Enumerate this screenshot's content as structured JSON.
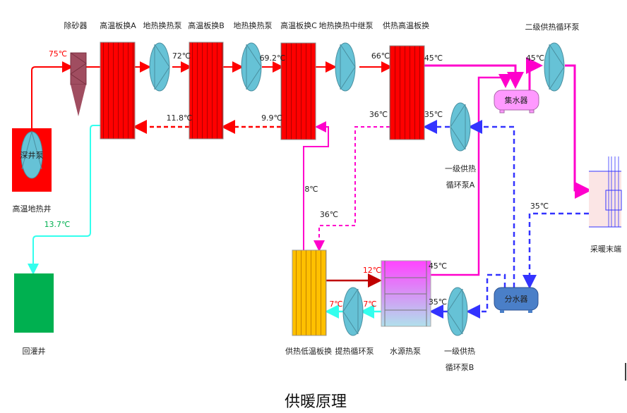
{
  "caption": "供暖原理",
  "components": {
    "deep_well_pump": "深井泵",
    "hot_well": "高温地热井",
    "reinjection_well": "回灌井",
    "desander": "除砂器",
    "hx_a": "高温板换A",
    "pump_1": "地热换热泵",
    "hx_b": "高温板换B",
    "pump_2": "地热换热泵",
    "hx_c": "高温板换C",
    "relay_pump": "地热换热中继泵",
    "supply_hx_high": "供热高温板换",
    "collector": "集水器",
    "secondary_pump": "二级供热循环泵",
    "terminal": "采暖末端",
    "primary_pump_a_line1": "一级供热",
    "primary_pump_a_line2": "循环泵A",
    "distributor": "分水器",
    "supply_hx_low": "供热低温板换",
    "extraction_pump": "提热循环泵",
    "water_source_hp": "水源热泵",
    "primary_pump_b_line1": "一级供热",
    "primary_pump_b_line2": "循环泵B"
  },
  "temperatures": {
    "well_out": "75℃",
    "after_a": "72℃",
    "after_b": "69.2℃",
    "after_c": "66℃",
    "return_b": "11.8℃",
    "return_c": "9.9℃",
    "reinjection": "13.7℃",
    "supply_hx_out": "45℃",
    "collector_out": "45℃",
    "supply_hx_return_in": "35℃",
    "supply_hx_return_out": "36℃",
    "low_hx_in": "36℃",
    "low_hx_loop": "8℃",
    "terminal_return": "35℃",
    "hp_in_source": "12℃",
    "hp_out_source": "7℃",
    "pump_out_source": "7℃",
    "hp_out_hot": "45℃",
    "hp_return": "35℃"
  },
  "colors": {
    "hot_geothermal": "#ff0000",
    "supply_hot": "#ff00cc",
    "return_cold": "#3333ff",
    "reinjection": "#33ffee",
    "pump": "#66c2d6",
    "low_hx": "#ffc000",
    "reinjection_well": "#00b050"
  }
}
